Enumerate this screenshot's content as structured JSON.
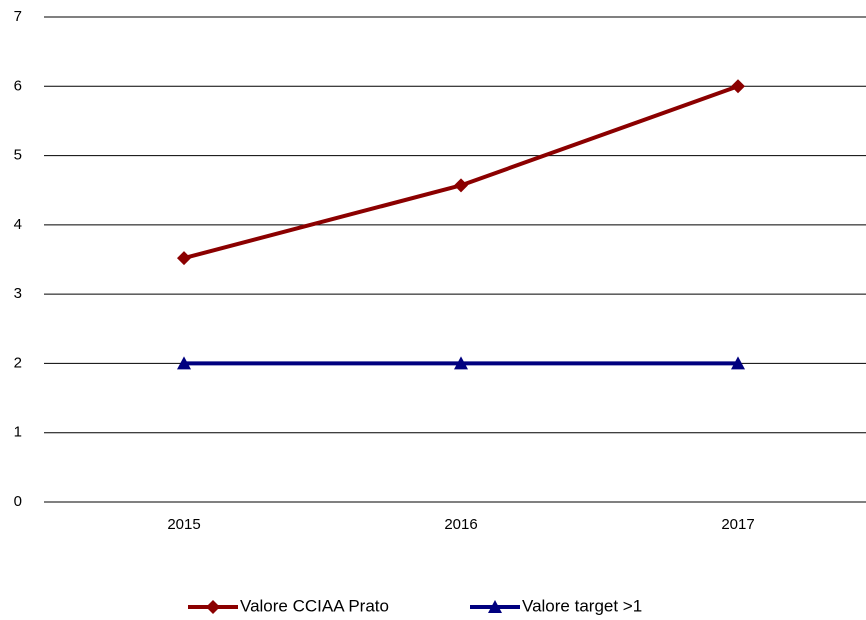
{
  "chart_data": {
    "type": "line",
    "categories": [
      "2015",
      "2016",
      "2017"
    ],
    "series": [
      {
        "name": "Valore CCIAA Prato",
        "color": "#8b0000",
        "marker": "diamond",
        "values": [
          3.52,
          4.57,
          6
        ]
      },
      {
        "name": "Valore target >1",
        "color": "#00007f",
        "marker": "triangle",
        "values": [
          2,
          2,
          2
        ]
      }
    ],
    "ylim": [
      0,
      7
    ],
    "yticks": [
      0,
      1,
      2,
      3,
      4,
      5,
      6,
      7
    ],
    "grid": true,
    "legend": "bottom"
  }
}
